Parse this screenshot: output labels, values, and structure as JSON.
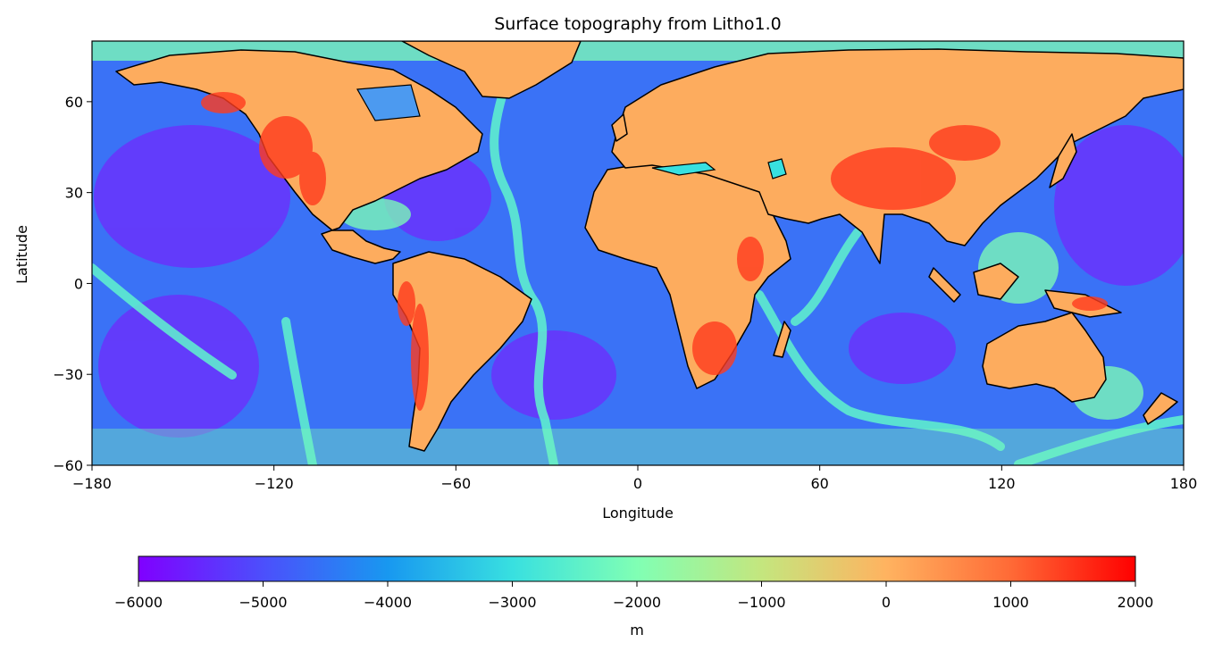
{
  "chart_data": {
    "type": "heatmap",
    "title": "Surface topography from Litho1.0",
    "xlabel": "Longitude",
    "ylabel": "Latitude",
    "xlim": [
      -180,
      180
    ],
    "ylim": [
      -60,
      80
    ],
    "xticks": [
      -180,
      -120,
      -60,
      0,
      60,
      120,
      180
    ],
    "yticks": [
      -60,
      -30,
      0,
      30,
      60
    ],
    "xtick_labels": [
      "−180",
      "−120",
      "−60",
      "0",
      "60",
      "120",
      "180"
    ],
    "ytick_labels": [
      "−60",
      "−30",
      "0",
      "30",
      "60"
    ],
    "colorbar": {
      "label": "m",
      "range": [
        -6000,
        2000
      ],
      "ticks": [
        -6000,
        -5000,
        -4000,
        -3000,
        -2000,
        -1000,
        0,
        1000,
        2000
      ],
      "tick_labels": [
        "−6000",
        "−5000",
        "−4000",
        "−3000",
        "−2000",
        "−1000",
        "0",
        "1000",
        "2000"
      ],
      "orientation": "horizontal",
      "colormap": "rainbow"
    },
    "overlay": "coastlines",
    "colormap_stops": [
      "#8000ff",
      "#4c4ffc",
      "#1898f0",
      "#38e0e0",
      "#80ffb4",
      "#c4e67e",
      "#ffb360",
      "#ff6a36",
      "#ff0000"
    ]
  }
}
